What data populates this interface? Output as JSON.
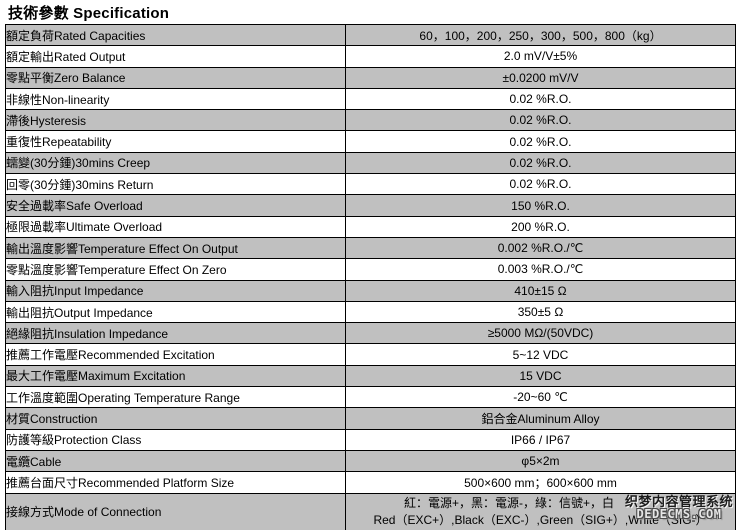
{
  "title": "技術參數 Specification",
  "colors": {
    "row_shade": "#c0c0c0",
    "row_white": "#ffffff",
    "border": "#000000"
  },
  "table": {
    "rows": [
      {
        "label": "額定負荷Rated Capacities",
        "value": "60，100，200，250，300，500，800（kg）"
      },
      {
        "label": "額定輸出Rated Output",
        "value": "2.0 mV/V±5%"
      },
      {
        "label": "零點平衡Zero Balance",
        "value": "±0.0200 mV/V"
      },
      {
        "label": "非線性Non-linearity",
        "value": "0.02 %R.O."
      },
      {
        "label": "滯後Hysteresis",
        "value": "0.02 %R.O."
      },
      {
        "label": "重復性Repeatability",
        "value": "0.02 %R.O."
      },
      {
        "label": "蠕變(30分鍾)30mins Creep",
        "value": "0.02 %R.O."
      },
      {
        "label": "回零(30分鍾)30mins Return",
        "value": "0.02 %R.O."
      },
      {
        "label": "安全過載率Safe Overload",
        "value": "150 %R.O."
      },
      {
        "label": "極限過載率Ultimate Overload",
        "value": "200 %R.O."
      },
      {
        "label": "輸出溫度影響Temperature Effect On Output",
        "value": "0.002 %R.O./℃"
      },
      {
        "label": "零點溫度影響Temperature Effect On Zero",
        "value": "0.003 %R.O./℃"
      },
      {
        "label": "輸入阻抗Input Impedance",
        "value": "410±15 Ω"
      },
      {
        "label": "輸出阻抗Output Impedance",
        "value": "350±5 Ω"
      },
      {
        "label": "絕緣阻抗Insulation Impedance",
        "value": "≥5000 MΩ/(50VDC)"
      },
      {
        "label": "推薦工作電壓Recommended Excitation",
        "value": "5~12 VDC"
      },
      {
        "label": "最大工作電壓Maximum Excitation",
        "value": "15 VDC"
      },
      {
        "label": "工作溫度範圍Operating Temperature Range",
        "value": "-20~60 ℃"
      },
      {
        "label": "材質Construction",
        "value": "鋁合金Aluminum Alloy"
      },
      {
        "label": "防護等級Protection Class",
        "value": "IP66 / IP67"
      },
      {
        "label": "電纜Cable",
        "value": "φ5×2m"
      },
      {
        "label": "推薦台面尺寸Recommended Platform Size",
        "value": "500×600 mm；600×600 mm"
      },
      {
        "label": "接線方式Mode of Connection",
        "value_lines": [
          "紅：電源+，黑：電源-，綠：信號+，白",
          "Red（EXC+）,Black（EXC-）,Green（SIG+）,White（SIG-）"
        ]
      }
    ]
  },
  "watermark": {
    "line1": "织梦内容管理系统",
    "line2": "DEDECMS.COM"
  }
}
